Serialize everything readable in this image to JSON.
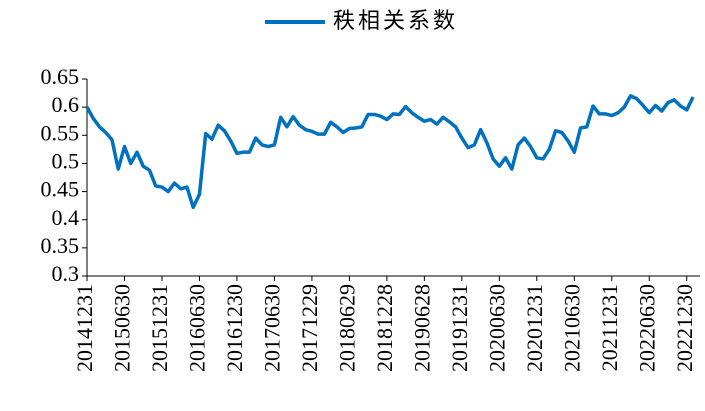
{
  "chart_data": {
    "type": "line",
    "categories": [
      "20141231",
      null,
      null,
      null,
      null,
      null,
      "20150630",
      null,
      null,
      null,
      null,
      null,
      "20151231",
      null,
      null,
      null,
      null,
      null,
      "20160630",
      null,
      null,
      null,
      null,
      null,
      "20161230",
      null,
      null,
      null,
      null,
      null,
      "20170630",
      null,
      null,
      null,
      null,
      null,
      "20171229",
      null,
      null,
      null,
      null,
      null,
      "20180629",
      null,
      null,
      null,
      null,
      null,
      "20181228",
      null,
      null,
      null,
      null,
      null,
      "20190628",
      null,
      null,
      null,
      null,
      null,
      "20191231",
      null,
      null,
      null,
      null,
      null,
      "20200630",
      null,
      null,
      null,
      null,
      null,
      "20201231",
      null,
      null,
      null,
      null,
      null,
      "20210630",
      null,
      null,
      null,
      null,
      null,
      "20211231",
      null,
      null,
      null,
      null,
      null,
      "20220630",
      null,
      null,
      null,
      null,
      null,
      "20221230",
      null
    ],
    "series": [
      {
        "name": "秩相关系数",
        "color": "#0070c0",
        "values": [
          0.6,
          0.58,
          0.565,
          0.555,
          0.542,
          0.49,
          0.53,
          0.5,
          0.52,
          0.495,
          0.488,
          0.46,
          0.458,
          0.45,
          0.465,
          0.455,
          0.458,
          0.422,
          0.445,
          0.553,
          0.543,
          0.568,
          0.558,
          0.54,
          0.518,
          0.52,
          0.52,
          0.545,
          0.533,
          0.53,
          0.533,
          0.582,
          0.565,
          0.583,
          0.568,
          0.56,
          0.557,
          0.552,
          0.552,
          0.573,
          0.565,
          0.555,
          0.562,
          0.563,
          0.565,
          0.587,
          0.587,
          0.584,
          0.578,
          0.588,
          0.587,
          0.601,
          0.59,
          0.582,
          0.575,
          0.578,
          0.57,
          0.582,
          0.574,
          0.565,
          0.545,
          0.528,
          0.533,
          0.56,
          0.537,
          0.508,
          0.495,
          0.51,
          0.49,
          0.533,
          0.545,
          0.53,
          0.51,
          0.508,
          0.525,
          0.558,
          0.555,
          0.54,
          0.52,
          0.563,
          0.565,
          0.602,
          0.588,
          0.588,
          0.585,
          0.59,
          0.6,
          0.62,
          0.615,
          0.603,
          0.59,
          0.603,
          0.593,
          0.608,
          0.613,
          0.602,
          0.595,
          0.618
        ]
      }
    ],
    "ylim": [
      0.3,
      0.65
    ],
    "yticks": [
      0.3,
      0.35,
      0.4,
      0.45,
      0.5,
      0.55,
      0.6,
      0.65
    ],
    "legend": "top"
  }
}
